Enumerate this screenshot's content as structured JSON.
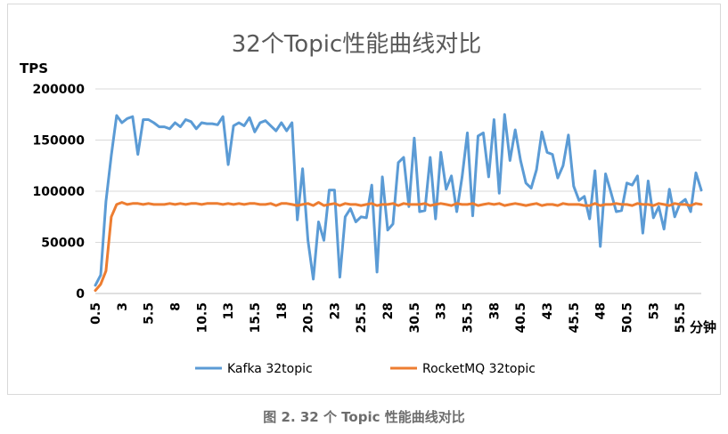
{
  "chart_data": {
    "type": "line",
    "title": "32个Topic性能曲线对比",
    "ylabel": "TPS",
    "xlabel": "分钟",
    "ylim": [
      0,
      200000
    ],
    "yticks": [
      0,
      50000,
      100000,
      150000,
      200000
    ],
    "ytick_labels": [
      "0",
      "50000",
      "100000",
      "150000",
      "200000"
    ],
    "xtick_labels": [
      "0.5",
      "3",
      "5.5",
      "8",
      "10.5",
      "13",
      "15.5",
      "18",
      "20.5",
      "23",
      "25.5",
      "28",
      "30.5",
      "33",
      "35.5",
      "38",
      "40.5",
      "43",
      "45.5",
      "48",
      "50.5",
      "53",
      "55.5"
    ],
    "x_start": 0.5,
    "x_step": 0.5,
    "grid": true,
    "legend_position": "bottom",
    "series": [
      {
        "name": "Kafka 32topic",
        "color": "#5b9bd5",
        "values": [
          8000,
          18000,
          90000,
          135000,
          174000,
          167000,
          171000,
          173000,
          136000,
          170000,
          170000,
          167000,
          163000,
          163000,
          161000,
          167000,
          163000,
          170000,
          168000,
          161000,
          167000,
          166000,
          166000,
          165000,
          173000,
          126000,
          164000,
          167000,
          164000,
          172000,
          158000,
          167000,
          169000,
          164000,
          159000,
          167000,
          159000,
          167000,
          72000,
          122000,
          52000,
          14000,
          70000,
          52000,
          101000,
          101000,
          16000,
          75000,
          83000,
          70000,
          75000,
          74000,
          106000,
          21000,
          114000,
          62000,
          68000,
          128000,
          133000,
          85000,
          152000,
          80000,
          81000,
          133000,
          73000,
          138000,
          102000,
          115000,
          80000,
          114000,
          157000,
          76000,
          154000,
          157000,
          114000,
          170000,
          98000,
          175000,
          130000,
          160000,
          130000,
          108000,
          103000,
          121000,
          158000,
          138000,
          136000,
          113000,
          125000,
          155000,
          105000,
          91000,
          95000,
          73000,
          120000,
          46000,
          117000,
          99000,
          80000,
          81000,
          108000,
          106000,
          115000,
          59000,
          110000,
          74000,
          85000,
          63000,
          102000,
          75000,
          88000,
          92000,
          80000,
          118000,
          101000
        ]
      },
      {
        "name": "RocketMQ 32topic",
        "color": "#ed7d31",
        "values": [
          3000,
          9000,
          22000,
          75000,
          87000,
          89000,
          87000,
          88000,
          88000,
          87000,
          88000,
          87000,
          87000,
          87000,
          88000,
          87000,
          88000,
          87000,
          88000,
          88000,
          87000,
          88000,
          88000,
          88000,
          87000,
          88000,
          87000,
          88000,
          87000,
          88000,
          88000,
          87000,
          87000,
          88000,
          86000,
          88000,
          88000,
          87000,
          86000,
          87000,
          88000,
          86000,
          89000,
          86000,
          87000,
          88000,
          86000,
          88000,
          87000,
          87000,
          86000,
          87000,
          88000,
          86000,
          87000,
          87000,
          88000,
          86000,
          88000,
          87000,
          87000,
          87000,
          88000,
          86000,
          87000,
          88000,
          87000,
          86000,
          88000,
          87000,
          87000,
          88000,
          86000,
          87000,
          88000,
          87000,
          88000,
          86000,
          87000,
          88000,
          87000,
          86000,
          87000,
          88000,
          86000,
          87000,
          87000,
          86000,
          88000,
          87000,
          87000,
          87000,
          86000,
          86000,
          88000,
          86000,
          87000,
          87000,
          88000,
          87000,
          87000,
          86000,
          88000,
          87000,
          87000,
          86000,
          88000,
          87000,
          86000,
          88000,
          87000,
          87000,
          86000,
          88000,
          87000
        ]
      }
    ]
  },
  "caption": "图 2. 32 个 Topic 性能曲线对比"
}
